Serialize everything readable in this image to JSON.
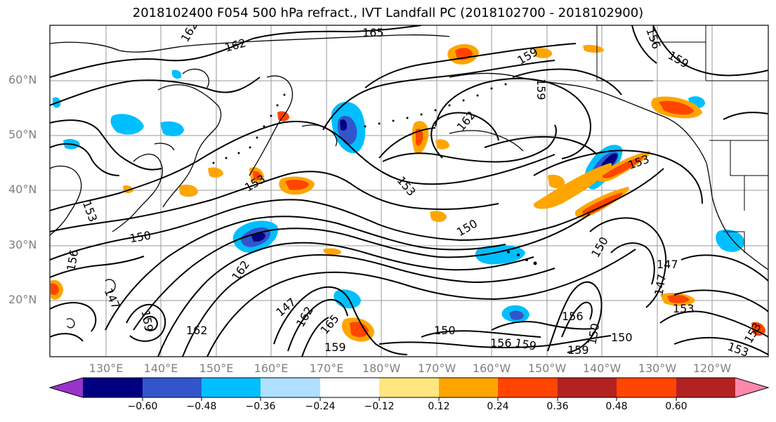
{
  "title": "2018102400 F054 500 hPa refract., IVT Landfall PC (2018102700 - 2018102900)",
  "lat_labels": [
    "60°N",
    "50°N",
    "40°N",
    "30°N",
    "20°N"
  ],
  "lon_labels": [
    "130°E",
    "140°E",
    "150°E",
    "160°E",
    "170°E",
    "180°W",
    "170°W",
    "160°W",
    "150°W",
    "140°W",
    "130°W",
    "120°W"
  ],
  "contour_labels": [
    "162",
    "165",
    "162",
    "159",
    "156",
    "159",
    "162",
    "153",
    "150",
    "150",
    "153",
    "150",
    "156",
    "147",
    "162",
    "147",
    "162",
    "159",
    "165",
    "159",
    "162",
    "150",
    "156",
    "159",
    "156",
    "150",
    "159",
    "150",
    "153",
    "147",
    "147",
    "153",
    "153",
    "159",
    "153",
    "153"
  ],
  "colorbar": {
    "tick_labels": [
      "−0.60",
      "−0.48",
      "−0.36",
      "−0.24",
      "−0.12",
      "0.12",
      "0.24",
      "0.36",
      "0.48",
      "0.60"
    ],
    "colors": [
      "#9933cc",
      "#000080",
      "#3355cc",
      "#00bfff",
      "#b0e0ff",
      "#ffffff",
      "#ffe680",
      "#ffa500",
      "#ff4500",
      "#b22222",
      "#ff88aa"
    ]
  }
}
